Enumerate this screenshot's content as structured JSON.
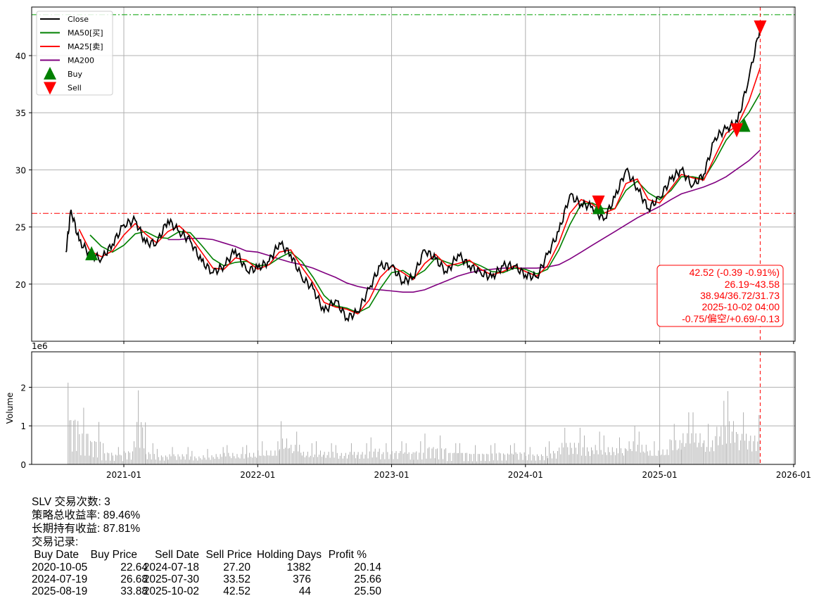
{
  "chart_data": [
    {
      "type": "line",
      "panel": "price",
      "ylim": [
        15.0,
        44.25
      ],
      "yticks": [
        20,
        25,
        30,
        35,
        40
      ],
      "xticks": [
        "2021-01",
        "2022-01",
        "2023-01",
        "2024-01",
        "2025-01",
        "2026-01"
      ],
      "grid": true,
      "legend": {
        "placement": "top-left",
        "entries": [
          "Close",
          "MA50[买]",
          "MA25[卖]",
          "MA200",
          "Buy",
          "Sell"
        ]
      },
      "colors": {
        "Close": "#000000",
        "MA50[买]": "#008000",
        "MA25[卖]": "#ff0000",
        "MA200": "#800080",
        "Buy": "#008000",
        "Sell": "#ff0000"
      },
      "x": [
        "2020-07-27",
        "2020-08-10",
        "2020-09-01",
        "2020-10-01",
        "2020-11-01",
        "2020-12-01",
        "2021-01-01",
        "2021-02-01",
        "2021-03-01",
        "2021-04-01",
        "2021-05-01",
        "2021-06-01",
        "2021-07-01",
        "2021-08-01",
        "2021-09-01",
        "2021-10-01",
        "2021-11-01",
        "2021-12-01",
        "2022-01-01",
        "2022-02-01",
        "2022-03-01",
        "2022-04-01",
        "2022-05-01",
        "2022-06-01",
        "2022-07-01",
        "2022-08-01",
        "2022-09-01",
        "2022-10-01",
        "2022-11-01",
        "2022-12-01",
        "2023-01-01",
        "2023-02-01",
        "2023-03-01",
        "2023-04-01",
        "2023-05-01",
        "2023-06-01",
        "2023-07-01",
        "2023-08-01",
        "2023-09-01",
        "2023-10-01",
        "2023-11-01",
        "2023-12-01",
        "2024-01-01",
        "2024-02-01",
        "2024-03-01",
        "2024-04-01",
        "2024-05-01",
        "2024-06-01",
        "2024-07-01",
        "2024-08-01",
        "2024-09-01",
        "2024-10-01",
        "2024-11-01",
        "2024-12-01",
        "2025-01-01",
        "2025-02-01",
        "2025-03-01",
        "2025-04-01",
        "2025-05-01",
        "2025-06-01",
        "2025-07-01",
        "2025-08-01",
        "2025-09-01",
        "2025-10-02"
      ],
      "series": [
        {
          "name": "Close",
          "values": [
            22.8,
            26.5,
            23.8,
            22.6,
            22.2,
            23.5,
            25.2,
            25.6,
            23.6,
            23.6,
            25.6,
            24.6,
            23.8,
            22.0,
            21.0,
            21.6,
            23.0,
            21.2,
            21.4,
            22.0,
            23.6,
            22.6,
            20.6,
            19.6,
            17.6,
            18.6,
            17.0,
            17.6,
            19.6,
            21.6,
            21.6,
            20.2,
            20.6,
            23.0,
            22.2,
            21.0,
            22.6,
            21.6,
            21.0,
            20.6,
            21.6,
            21.6,
            20.8,
            20.6,
            22.6,
            24.6,
            27.8,
            27.0,
            26.8,
            25.6,
            27.6,
            30.0,
            28.4,
            26.6,
            27.6,
            29.2,
            30.0,
            28.6,
            29.6,
            32.8,
            33.6,
            34.2,
            38.0,
            42.52
          ]
        },
        {
          "name": "MA50[买]",
          "values": [
            null,
            null,
            null,
            24.3,
            23.3,
            22.8,
            23.4,
            24.4,
            24.6,
            24.1,
            24.0,
            24.6,
            24.5,
            23.4,
            22.2,
            21.6,
            21.9,
            22.0,
            21.6,
            21.7,
            22.3,
            22.8,
            22.0,
            20.6,
            19.0,
            18.1,
            17.9,
            17.5,
            18.0,
            19.6,
            21.0,
            21.2,
            20.6,
            21.2,
            22.3,
            21.9,
            21.6,
            22.0,
            21.6,
            21.1,
            21.0,
            21.4,
            21.3,
            20.9,
            21.3,
            23.0,
            25.2,
            27.0,
            27.1,
            26.6,
            26.6,
            28.2,
            29.0,
            28.0,
            27.4,
            28.2,
            29.4,
            29.4,
            29.2,
            30.8,
            32.6,
            33.8,
            35.0,
            36.72
          ]
        },
        {
          "name": "MA25[卖]",
          "values": [
            null,
            null,
            24.8,
            22.9,
            22.4,
            22.9,
            24.3,
            25.3,
            24.4,
            23.6,
            24.6,
            25.1,
            24.2,
            22.8,
            21.4,
            21.3,
            22.3,
            22.1,
            21.3,
            21.7,
            22.8,
            23.0,
            21.5,
            20.1,
            18.4,
            18.0,
            17.8,
            17.4,
            18.6,
            20.6,
            21.6,
            21.0,
            20.4,
            21.8,
            22.6,
            21.6,
            21.8,
            22.1,
            21.3,
            20.8,
            21.1,
            21.6,
            21.1,
            20.7,
            21.6,
            23.6,
            26.2,
            27.4,
            27.0,
            26.2,
            26.6,
            28.8,
            29.2,
            27.4,
            27.1,
            28.4,
            29.6,
            29.3,
            29.1,
            31.2,
            33.2,
            33.9,
            36.0,
            38.94
          ]
        },
        {
          "name": "MA200",
          "values": [
            null,
            null,
            null,
            null,
            null,
            null,
            null,
            null,
            null,
            null,
            23.9,
            23.9,
            24.0,
            24.0,
            23.9,
            23.6,
            23.3,
            22.9,
            22.8,
            22.5,
            22.2,
            21.9,
            21.7,
            21.4,
            21.0,
            20.6,
            20.1,
            19.8,
            19.6,
            19.5,
            19.4,
            19.3,
            19.3,
            19.5,
            19.9,
            20.3,
            20.7,
            21.0,
            21.2,
            21.3,
            21.4,
            21.4,
            21.4,
            21.4,
            21.5,
            21.7,
            22.2,
            22.8,
            23.4,
            24.0,
            24.6,
            25.2,
            25.8,
            26.3,
            26.8,
            27.4,
            27.9,
            28.2,
            28.5,
            28.9,
            29.4,
            30.1,
            30.8,
            31.73
          ]
        }
      ],
      "buy_points": [
        {
          "x": "2020-10-05",
          "y": 22.64
        },
        {
          "x": "2024-07-19",
          "y": 26.68
        },
        {
          "x": "2025-08-19",
          "y": 33.88
        }
      ],
      "sell_points": [
        {
          "x": "2024-07-18",
          "y": 27.2
        },
        {
          "x": "2025-07-30",
          "y": 33.52
        },
        {
          "x": "2025-10-02",
          "y": 42.52
        }
      ],
      "hlines": [
        {
          "y": 43.58,
          "color": "#00a000",
          "style": "dash-dot"
        },
        {
          "y": 26.19,
          "color": "#ff0000",
          "style": "dash-dot"
        }
      ],
      "vline": {
        "x": "2025-10-02",
        "color": "#ff0000",
        "style": "dashed"
      },
      "annotation": [
        "42.52 (-0.39 -0.91%)",
        "26.19~43.58",
        "38.94/36.72/31.73",
        "2025-10-02 04:00",
        "-0.75/偏空/+0.69/-0.13"
      ]
    },
    {
      "type": "bar",
      "panel": "volume",
      "ylabel": "Volume",
      "scale_label": "1e6",
      "ylim": [
        0,
        2.92
      ],
      "yticks": [
        0,
        1,
        2
      ],
      "color": "#b0b0b0",
      "x": [
        "2020-08",
        "2020-09",
        "2020-10",
        "2020-11",
        "2020-12",
        "2021-01",
        "2021-02",
        "2021-03",
        "2021-04",
        "2021-05",
        "2021-06",
        "2021-07",
        "2021-08",
        "2021-09",
        "2021-10",
        "2021-11",
        "2021-12",
        "2022-01",
        "2022-02",
        "2022-03",
        "2022-04",
        "2022-05",
        "2022-06",
        "2022-07",
        "2022-08",
        "2022-09",
        "2022-10",
        "2022-11",
        "2022-12",
        "2023-01",
        "2023-02",
        "2023-03",
        "2023-04",
        "2023-05",
        "2023-06",
        "2023-07",
        "2023-08",
        "2023-09",
        "2023-10",
        "2023-11",
        "2023-12",
        "2024-01",
        "2024-02",
        "2024-03",
        "2024-04",
        "2024-05",
        "2024-06",
        "2024-07",
        "2024-08",
        "2024-09",
        "2024-10",
        "2024-11",
        "2024-12",
        "2025-01",
        "2025-02",
        "2025-03",
        "2025-04",
        "2025-05",
        "2025-06",
        "2025-07",
        "2025-08",
        "2025-09"
      ],
      "values": [
        2.12,
        1.47,
        1.1,
        0.55,
        0.45,
        0.6,
        1.92,
        0.55,
        0.4,
        0.45,
        0.45,
        0.35,
        0.4,
        0.45,
        0.5,
        0.45,
        0.5,
        0.6,
        0.6,
        1.12,
        0.85,
        0.55,
        0.6,
        0.55,
        0.5,
        0.55,
        0.55,
        0.7,
        0.55,
        0.6,
        0.55,
        0.6,
        0.8,
        0.75,
        0.55,
        0.55,
        0.5,
        0.5,
        0.55,
        0.5,
        0.55,
        0.45,
        0.45,
        0.6,
        0.95,
        0.95,
        0.75,
        0.85,
        0.75,
        0.7,
        1.0,
        0.85,
        0.6,
        0.65,
        1.05,
        1.35,
        1.35,
        1.05,
        1.65,
        1.9,
        1.35,
        1.28
      ]
    }
  ],
  "summary": {
    "line1": "SLV 交易次数: 3",
    "line2": "策略总收益率: 89.46%",
    "line3": "长期持有收益: 87.81%",
    "line4": "交易记录:",
    "headers": [
      "Buy Date",
      "Buy Price",
      "Sell Date",
      "Sell Price",
      "Holding Days",
      "Profit %"
    ],
    "rows": [
      [
        "2020-10-05",
        "22.64",
        "2024-07-18",
        "27.20",
        "1382",
        "20.14"
      ],
      [
        "2024-07-19",
        "26.68",
        "2025-07-30",
        "33.52",
        "376",
        "25.66"
      ],
      [
        "2025-08-19",
        "33.88",
        "2025-10-02",
        "42.52",
        "44",
        "25.50"
      ]
    ]
  }
}
